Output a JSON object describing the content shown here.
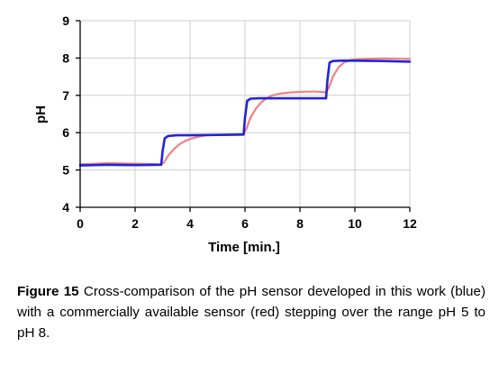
{
  "chart_data": {
    "type": "line",
    "xlabel": "Time [min.]",
    "ylabel": "pH",
    "xlim": [
      0,
      12
    ],
    "ylim": [
      4,
      9
    ],
    "xticks": [
      "0",
      "2",
      "4",
      "6",
      "8",
      "10",
      "12"
    ],
    "yticks": [
      "4",
      "5",
      "6",
      "7",
      "8",
      "9"
    ],
    "grid": true,
    "series": [
      {
        "color": "#f08080",
        "x": [
          0,
          1,
          2,
          2.95,
          3.05,
          3.2,
          3.4,
          3.6,
          3.8,
          4.0,
          4.3,
          4.6,
          5.0,
          5.5,
          5.95,
          6.05,
          6.2,
          6.4,
          6.6,
          6.8,
          7.0,
          7.3,
          7.7,
          8.2,
          8.6,
          8.95,
          9.05,
          9.2,
          9.4,
          9.6,
          9.8,
          10.0,
          10.5,
          11.0,
          11.5,
          12.0
        ],
        "y": [
          5.15,
          5.18,
          5.17,
          5.15,
          5.2,
          5.38,
          5.55,
          5.68,
          5.77,
          5.83,
          5.89,
          5.93,
          5.94,
          5.95,
          5.96,
          6.1,
          6.4,
          6.65,
          6.82,
          6.93,
          7.0,
          7.05,
          7.08,
          7.1,
          7.1,
          7.08,
          7.2,
          7.5,
          7.75,
          7.88,
          7.94,
          7.96,
          7.98,
          7.99,
          7.98,
          7.97
        ]
      },
      {
        "color": "#2222dd",
        "x": [
          0,
          1,
          2,
          2.95,
          3.0,
          3.08,
          3.2,
          3.5,
          4.0,
          5.0,
          5.95,
          6.0,
          6.08,
          6.2,
          6.5,
          7.0,
          8.0,
          8.95,
          9.0,
          9.08,
          9.2,
          9.5,
          10.0,
          11.0,
          12.0
        ],
        "y": [
          5.12,
          5.14,
          5.13,
          5.14,
          5.5,
          5.85,
          5.91,
          5.93,
          5.93,
          5.94,
          5.95,
          6.4,
          6.85,
          6.91,
          6.92,
          6.92,
          6.92,
          6.92,
          7.4,
          7.88,
          7.92,
          7.93,
          7.93,
          7.92,
          7.9
        ]
      }
    ]
  },
  "caption": {
    "label": "Figure 15",
    "text": " Cross-comparison of the pH sensor developed in this work (blue) with a commercially available sensor (red) stepping over the range pH 5 to pH 8."
  }
}
